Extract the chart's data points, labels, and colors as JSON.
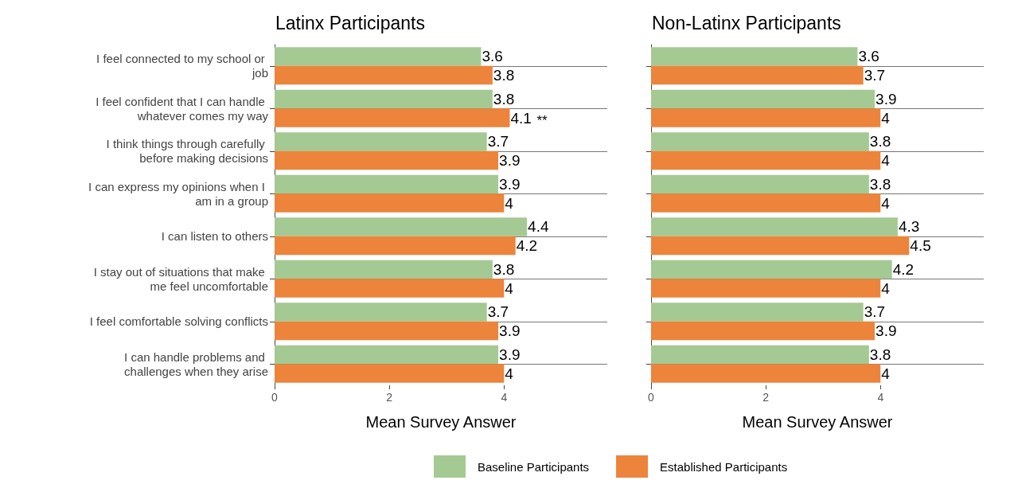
{
  "chart_data": [
    {
      "type": "bar",
      "orientation": "horizontal",
      "title": "Latinx Participants",
      "xlabel": "Mean Survey Answer",
      "categories": [
        "I feel connected to my school or job",
        "I feel confident that I can handle whatever comes my way",
        "I think things through carefully before making decisions",
        "I can express my opinions when I am in a group",
        "I can listen to others",
        "I stay out of situations that make me feel uncomfortable",
        "I feel comfortable solving conflicts",
        "I can handle problems and challenges when they arise"
      ],
      "series": [
        {
          "name": "Baseline Participants",
          "color": "#a5c993",
          "values": [
            3.6,
            3.8,
            3.7,
            3.9,
            4.4,
            3.8,
            3.7,
            3.9
          ]
        },
        {
          "name": "Established Participants",
          "color": "#ec843b",
          "values": [
            3.8,
            4.1,
            3.9,
            4,
            4.2,
            4,
            3.9,
            4
          ]
        }
      ],
      "xlim": [
        0,
        5.8
      ],
      "xticks": [
        0,
        2,
        4
      ],
      "grid": "y",
      "data_labels": true,
      "legend": "bottom",
      "annotations": [
        {
          "text": "**",
          "x": 4.1,
          "y": "I feel confident that I can handle whatever comes my way"
        }
      ]
    },
    {
      "type": "bar",
      "orientation": "horizontal",
      "title": "Non-Latinx Participants",
      "xlabel": "Mean Survey Answer",
      "categories": [
        null,
        null,
        null,
        null,
        null,
        null,
        null,
        null
      ],
      "series": [
        {
          "color": "#a5c993",
          "values": [
            3.6,
            3.9,
            3.8,
            3.8,
            4.3,
            4.2,
            3.7,
            3.8
          ]
        },
        {
          "color": "#ec843b",
          "values": [
            3.7,
            4,
            4,
            4,
            4.5,
            4,
            3.9,
            4
          ]
        }
      ],
      "xlim": [
        0,
        5.8
      ],
      "xticks": [
        0,
        2,
        4
      ],
      "grid": "y",
      "data_labels": true,
      "tick_labels": "x"
    }
  ]
}
